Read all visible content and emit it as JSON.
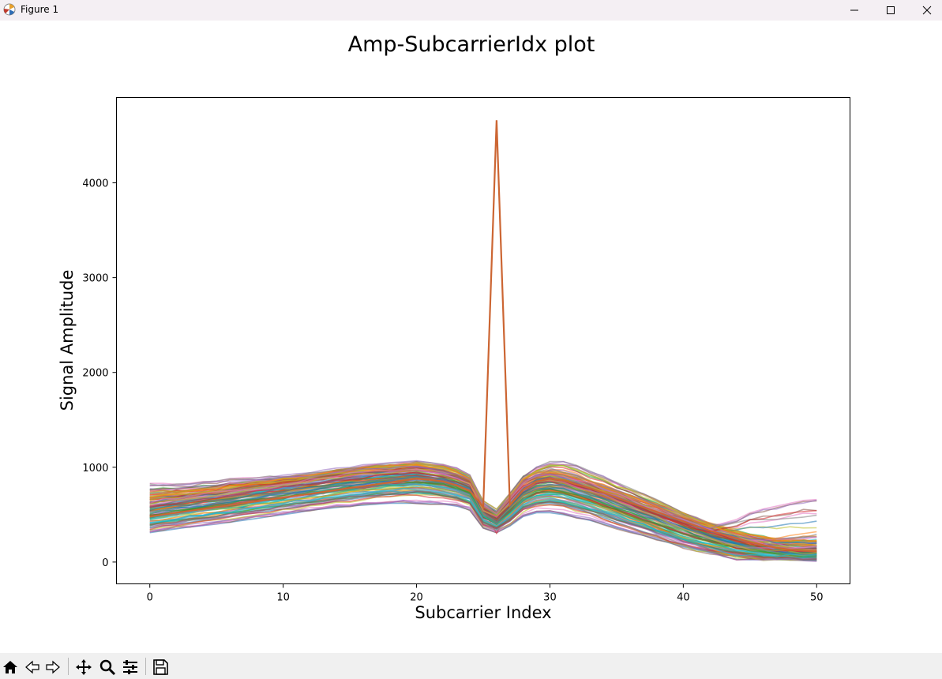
{
  "window": {
    "title": "Figure 1"
  },
  "toolbar": {
    "buttons": [
      "home-icon",
      "back-icon",
      "forward-icon",
      "pan-icon",
      "zoom-icon",
      "configure-icon",
      "save-icon"
    ]
  },
  "chart_data": {
    "type": "line",
    "title": "Amp-SubcarrierIdx plot",
    "xlabel": "Subcarrier Index",
    "ylabel": "Signal Amplitude",
    "xlim": [
      -2.5,
      52.5
    ],
    "ylim": [
      -230,
      4900
    ],
    "xticks": [
      0,
      10,
      20,
      30,
      40,
      50
    ],
    "yticks": [
      0,
      1000,
      2000,
      3000,
      4000
    ],
    "grid": false,
    "legend": "none",
    "num_series_approx": 120,
    "x": [
      0,
      1,
      2,
      3,
      4,
      5,
      6,
      7,
      8,
      9,
      10,
      11,
      12,
      13,
      14,
      15,
      16,
      17,
      18,
      19,
      20,
      21,
      22,
      23,
      24,
      25,
      26,
      27,
      28,
      29,
      30,
      31,
      32,
      33,
      34,
      35,
      36,
      37,
      38,
      39,
      40,
      41,
      42,
      43,
      44,
      45,
      46,
      47,
      48,
      49,
      50
    ],
    "series": [
      {
        "values": [
          310,
          330,
          350,
          370,
          385,
          400,
          420,
          440,
          460,
          480,
          500,
          520,
          545,
          560,
          575,
          590,
          600,
          610,
          620,
          620,
          620,
          615,
          610,
          590,
          550,
          360,
          310,
          380,
          480,
          520,
          520,
          500,
          470,
          440,
          400,
          360,
          320,
          280,
          240,
          200,
          160,
          130,
          100,
          80,
          60,
          40,
          30,
          25,
          20,
          20,
          20
        ]
      },
      {
        "values": [
          400,
          420,
          440,
          460,
          480,
          500,
          520,
          540,
          560,
          580,
          600,
          620,
          640,
          660,
          680,
          700,
          715,
          730,
          745,
          750,
          760,
          740,
          720,
          690,
          640,
          430,
          370,
          460,
          580,
          640,
          660,
          640,
          600,
          560,
          520,
          470,
          420,
          380,
          330,
          280,
          240,
          200,
          170,
          140,
          110,
          90,
          70,
          55,
          45,
          40,
          40
        ]
      },
      {
        "values": [
          470,
          495,
          515,
          540,
          560,
          580,
          600,
          620,
          640,
          660,
          680,
          700,
          720,
          740,
          760,
          780,
          795,
          810,
          820,
          830,
          840,
          830,
          810,
          780,
          720,
          480,
          410,
          520,
          660,
          730,
          750,
          730,
          690,
          650,
          600,
          550,
          500,
          450,
          400,
          350,
          300,
          260,
          220,
          180,
          150,
          120,
          100,
          85,
          75,
          70,
          70
        ]
      },
      {
        "values": [
          540,
          565,
          585,
          605,
          625,
          645,
          665,
          685,
          705,
          725,
          745,
          765,
          785,
          805,
          820,
          835,
          850,
          860,
          870,
          880,
          885,
          875,
          855,
          820,
          760,
          520,
          450,
          580,
          730,
          800,
          820,
          800,
          760,
          710,
          660,
          610,
          560,
          510,
          460,
          410,
          360,
          310,
          270,
          230,
          190,
          160,
          130,
          110,
          100,
          95,
          95
        ]
      },
      {
        "values": [
          620,
          640,
          660,
          680,
          700,
          720,
          740,
          760,
          780,
          800,
          820,
          840,
          860,
          880,
          900,
          915,
          930,
          945,
          955,
          965,
          975,
          960,
          940,
          900,
          840,
          560,
          480,
          640,
          800,
          880,
          900,
          880,
          840,
          790,
          740,
          690,
          640,
          590,
          540,
          490,
          440,
          390,
          340,
          300,
          260,
          220,
          190,
          165,
          150,
          140,
          140
        ]
      },
      {
        "values": [
          700,
          715,
          730,
          745,
          760,
          780,
          800,
          820,
          840,
          860,
          880,
          900,
          920,
          940,
          960,
          975,
          990,
          1005,
          1015,
          1025,
          1035,
          1020,
          995,
          950,
          880,
          590,
          510,
          690,
          870,
          940,
          960,
          940,
          900,
          850,
          800,
          750,
          700,
          650,
          600,
          550,
          500,
          450,
          400,
          360,
          320,
          290,
          260,
          240,
          225,
          215,
          210
        ]
      },
      {
        "values": [
          830,
          830,
          820,
          830,
          850,
          850,
          880,
          890,
          890,
          900,
          900,
          910,
          920,
          940,
          960,
          980,
          990,
          1000,
          1000,
          1010,
          1010,
          1000,
          980,
          950,
          890,
          610,
          520,
          710,
          880,
          920,
          930,
          900,
          860,
          810,
          760,
          710,
          660,
          610,
          560,
          510,
          460,
          410,
          380,
          410,
          450,
          520,
          560,
          590,
          620,
          650,
          660
        ]
      },
      {
        "values": [
          760,
          770,
          780,
          790,
          800,
          810,
          830,
          840,
          860,
          880,
          900,
          910,
          930,
          950,
          970,
          990,
          1010,
          1030,
          1040,
          1050,
          1060,
          1050,
          1030,
          990,
          920,
          620,
          530,
          720,
          900,
          1000,
          1060,
          1060,
          1020,
          960,
          900,
          840,
          780,
          720,
          660,
          590,
          520,
          460,
          400,
          350,
          300,
          250,
          200,
          160,
          130,
          110,
          100
        ]
      },
      {
        "values": [
          480,
          500,
          520,
          540,
          560,
          580,
          600,
          620,
          640,
          660,
          680,
          700,
          720,
          740,
          760,
          780,
          800,
          820,
          840,
          860,
          880,
          870,
          850,
          810,
          750,
          580,
          4660,
          600,
          760,
          850,
          880,
          860,
          820,
          780,
          730,
          680,
          630,
          580,
          530,
          480,
          430,
          380,
          330,
          290,
          250,
          210,
          180,
          150,
          130,
          120,
          115
        ]
      },
      {
        "values": [
          560,
          590,
          610,
          630,
          650,
          670,
          690,
          710,
          730,
          750,
          770,
          790,
          810,
          830,
          850,
          870,
          880,
          890,
          900,
          900,
          900,
          880,
          860,
          820,
          760,
          510,
          440,
          560,
          700,
          760,
          770,
          740,
          700,
          650,
          600,
          540,
          480,
          420,
          360,
          300,
          240,
          180,
          120,
          60,
          30,
          25,
          30,
          40,
          60,
          80,
          100
        ]
      },
      {
        "values": [
          360,
          380,
          400,
          420,
          440,
          460,
          480,
          500,
          520,
          540,
          560,
          580,
          600,
          620,
          640,
          660,
          680,
          700,
          710,
          720,
          730,
          720,
          700,
          670,
          620,
          400,
          350,
          430,
          560,
          610,
          620,
          600,
          560,
          520,
          470,
          420,
          370,
          320,
          270,
          220,
          180,
          140,
          110,
          90,
          70,
          55,
          45,
          40,
          35,
          35,
          35
        ]
      },
      {
        "values": [
          650,
          670,
          690,
          710,
          730,
          750,
          770,
          790,
          810,
          830,
          850,
          870,
          890,
          910,
          930,
          950,
          960,
          970,
          975,
          980,
          985,
          970,
          945,
          900,
          840,
          560,
          480,
          650,
          820,
          900,
          930,
          910,
          870,
          820,
          760,
          700,
          640,
          580,
          520,
          460,
          400,
          350,
          300,
          260,
          220,
          200,
          220,
          250,
          280,
          300,
          320
        ]
      }
    ]
  }
}
